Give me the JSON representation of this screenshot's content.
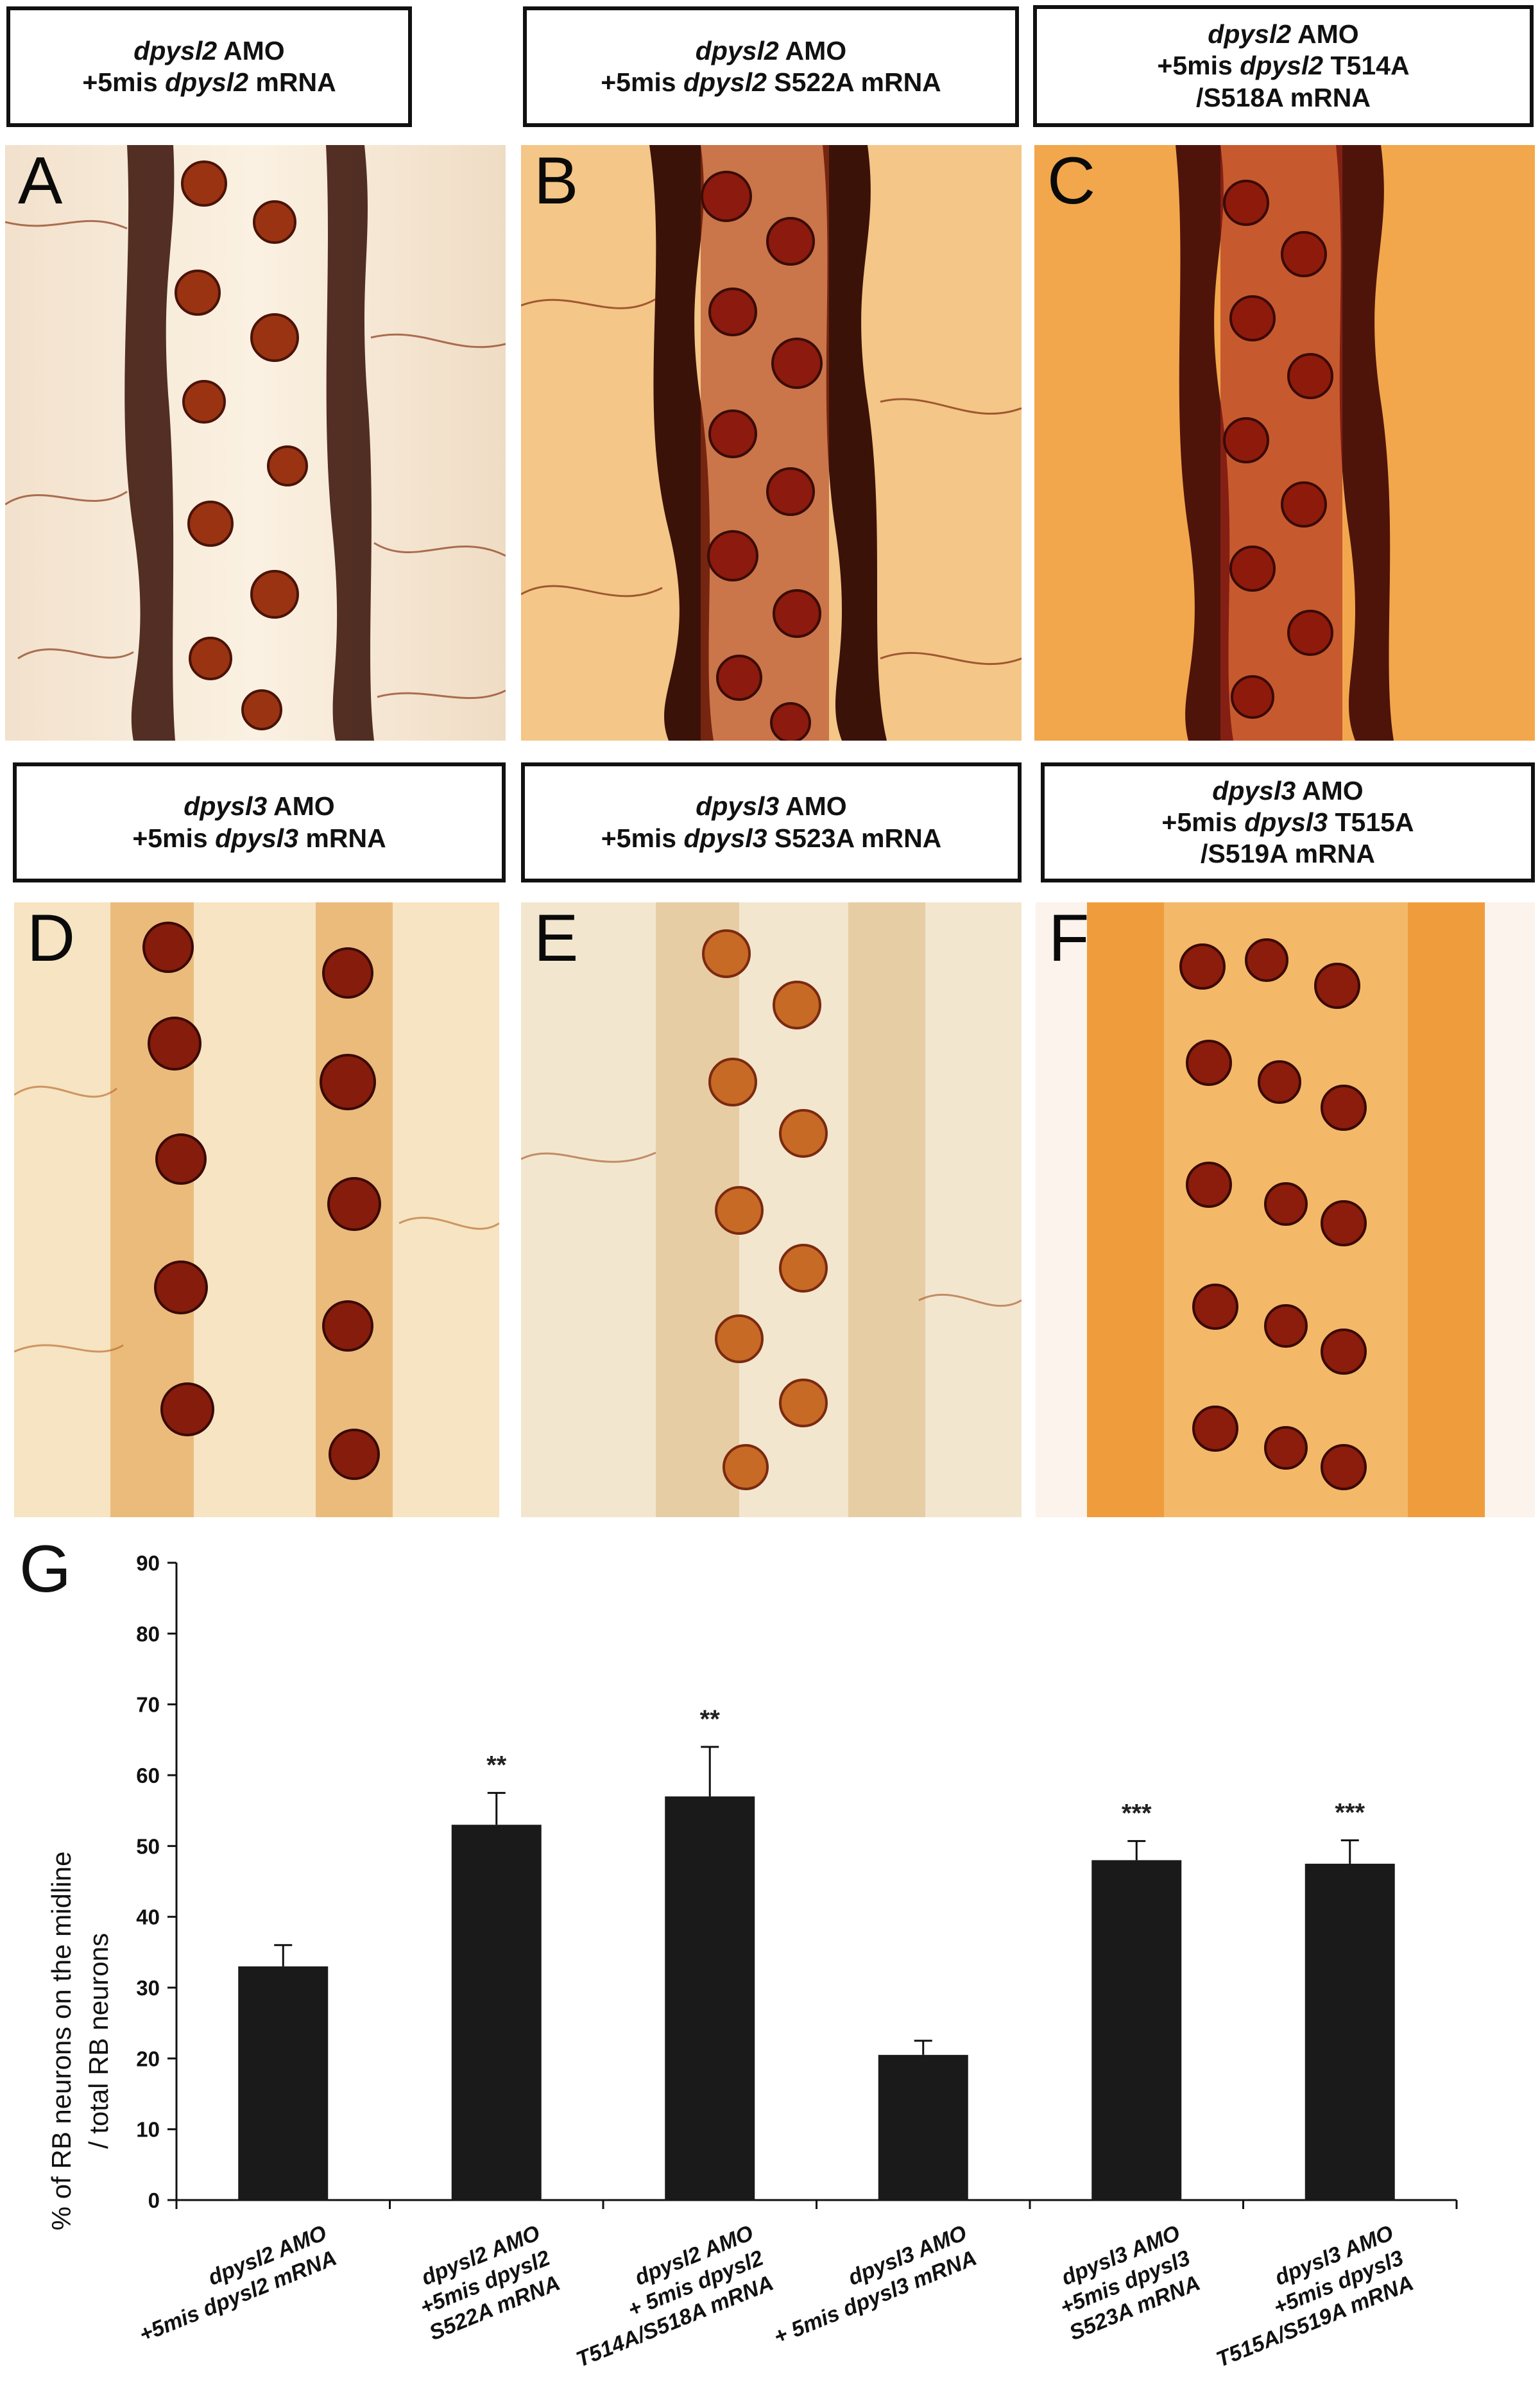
{
  "panels": [
    {
      "letter": "A",
      "label_l1_gene": "dpysl2",
      "label_l1_rest": " AMO",
      "label_l2_pre": "+5mis ",
      "label_l2_gene": "dpysl2",
      "label_l2_post": " mRNA",
      "label_l3": ""
    },
    {
      "letter": "B",
      "label_l1_gene": "dpysl2",
      "label_l1_rest": " AMO",
      "label_l2_pre": "+5mis ",
      "label_l2_gene": "dpysl2",
      "label_l2_post": " S522A mRNA",
      "label_l3": ""
    },
    {
      "letter": "C",
      "label_l1_gene": "dpysl2",
      "label_l1_rest": " AMO",
      "label_l2_pre": "+5mis ",
      "label_l2_gene": "dpysl2",
      "label_l2_post": " T514A",
      "label_l3": "/S518A mRNA"
    },
    {
      "letter": "D",
      "label_l1_gene": "dpysl3",
      "label_l1_rest": " AMO",
      "label_l2_pre": "+5mis ",
      "label_l2_gene": "dpysl3",
      "label_l2_post": " mRNA",
      "label_l3": ""
    },
    {
      "letter": "E",
      "label_l1_gene": "dpysl3",
      "label_l1_rest": " AMO",
      "label_l2_pre": "+5mis ",
      "label_l2_gene": "dpysl3",
      "label_l2_post": " S523A mRNA",
      "label_l3": ""
    },
    {
      "letter": "F",
      "label_l1_gene": "dpysl3",
      "label_l1_rest": " AMO",
      "label_l2_pre": "+5mis ",
      "label_l2_gene": "dpysl3",
      "label_l2_post": " T515A",
      "label_l3": "/S519A mRNA"
    }
  ],
  "colors": {
    "bar": "#1a1a1a",
    "stain_light": "#f6e6c8",
    "stain_orange": "#e9902e",
    "stain_dark": "#5a1608",
    "cell_red": "#8e1a0c"
  },
  "chart_data": {
    "type": "bar",
    "panel_letter": "G",
    "ylabel_line1": "% of RB neurons on the midline",
    "ylabel_line2": "/ total RB neurons",
    "ylim": [
      0,
      90
    ],
    "yticks": [
      0,
      10,
      20,
      30,
      40,
      50,
      60,
      70,
      80,
      90
    ],
    "grid": false,
    "categories": [
      {
        "line1": "dpysl2 AMO",
        "line2": "+5mis dpysl2 mRNA",
        "line3": ""
      },
      {
        "line1": "dpysl2 AMO",
        "line2": "+5mis dpysl2",
        "line3": "S522A mRNA"
      },
      {
        "line1": "dpysl2 AMO",
        "line2": "+ 5mis dpysl2",
        "line3": "T514A/S518A mRNA"
      },
      {
        "line1": "dpysl3 AMO",
        "line2": "+ 5mis dpysl3 mRNA",
        "line3": ""
      },
      {
        "line1": "dpysl3 AMO",
        "line2": "+5mis dpysl3",
        "line3": "S523A mRNA"
      },
      {
        "line1": "dpysl3 AMO",
        "line2": "+5mis dpysl3",
        "line3": "T515A/S519A mRNA"
      }
    ],
    "values": [
      33,
      53,
      57,
      20.5,
      48,
      47.5
    ],
    "errors": [
      3,
      4.5,
      7,
      2,
      2.7,
      3.3
    ],
    "significance": [
      "",
      "**",
      "**",
      "",
      "***",
      "***"
    ]
  }
}
